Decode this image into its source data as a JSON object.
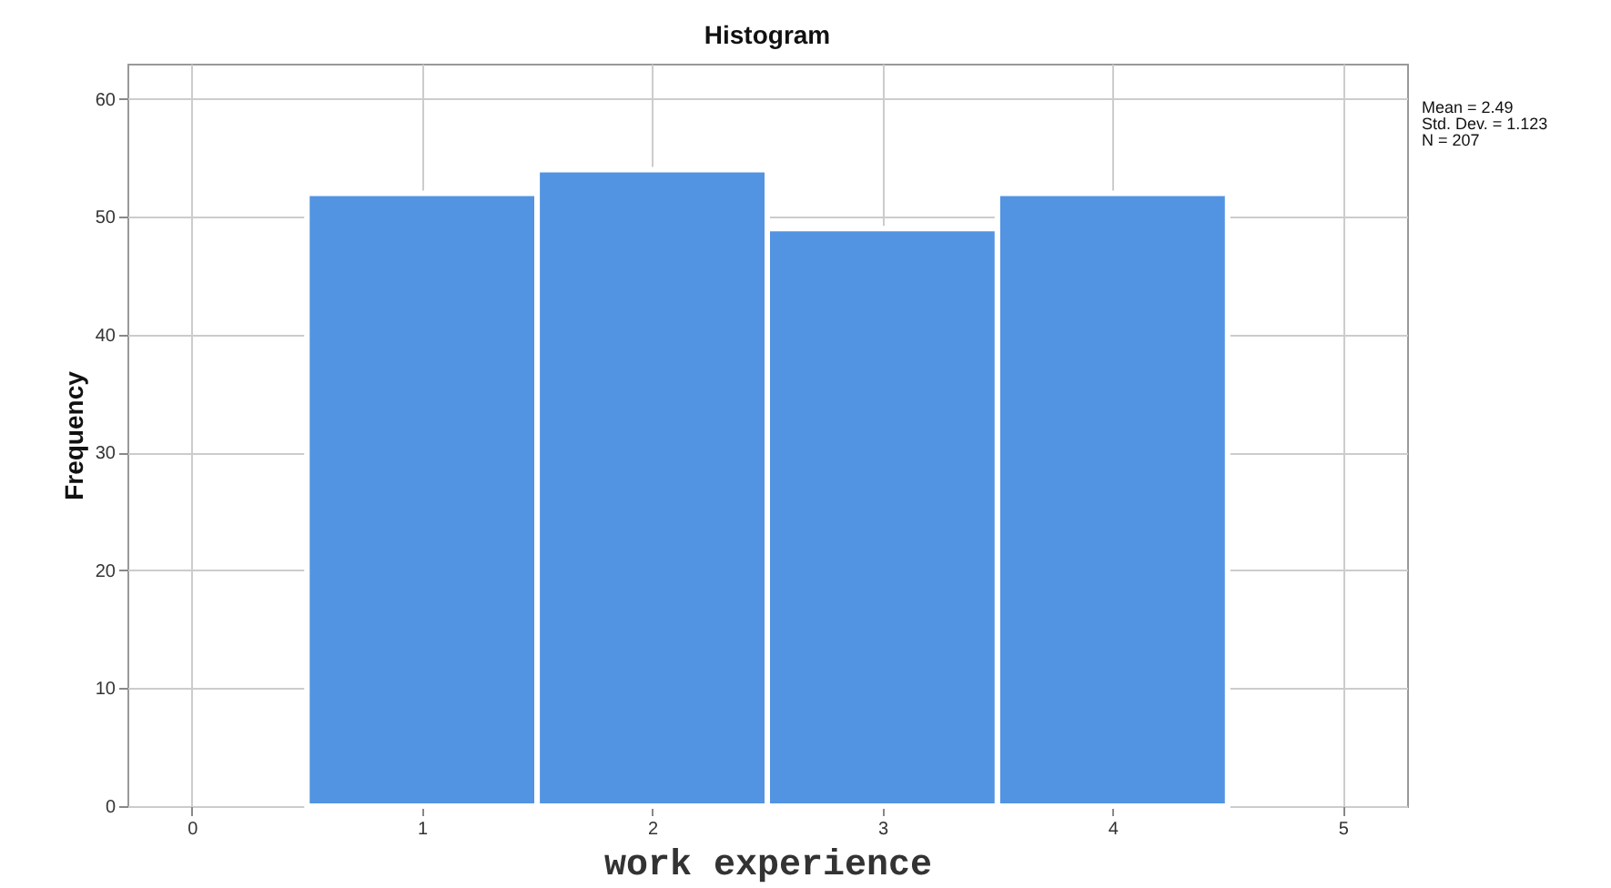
{
  "chart_data": {
    "type": "histogram",
    "title": "Histogram",
    "xlabel": "work experience",
    "ylabel": "Frequency",
    "bins": [
      0.5,
      1.5,
      2.5,
      3.5,
      4.5
    ],
    "values": [
      52,
      54,
      49,
      52
    ],
    "color": "#5294e2",
    "xlim": [
      -0.28,
      5.28
    ],
    "xticks": [
      0,
      1,
      2,
      3,
      4,
      5
    ],
    "ylim": [
      0,
      63
    ],
    "yticks": [
      0,
      10,
      20,
      30,
      40,
      50,
      60
    ],
    "grid": true,
    "annotations": [
      "Mean = 2.49",
      "Std. Dev. = 1.123",
      "N = 207"
    ]
  }
}
